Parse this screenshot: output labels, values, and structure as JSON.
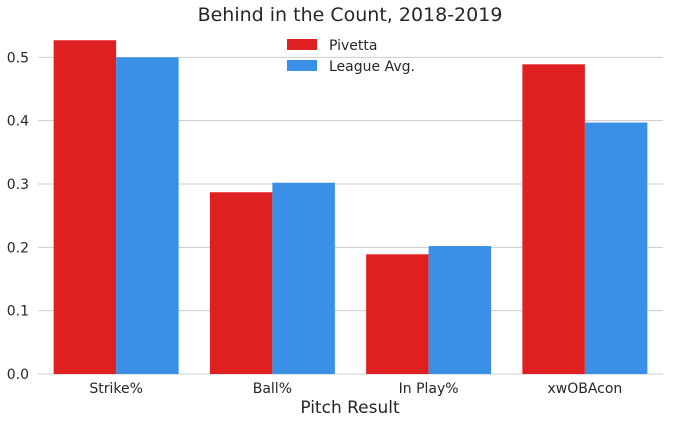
{
  "chart_data": {
    "type": "bar",
    "title": "Behind in the Count, 2018-2019",
    "xlabel": "Pitch Result",
    "ylabel": "",
    "categories": [
      "Strike%",
      "Ball%",
      "In Play%",
      "xwOBAcon"
    ],
    "series": [
      {
        "name": "Pivetta",
        "color": "#e02020",
        "values": [
          0.527,
          0.287,
          0.189,
          0.489
        ]
      },
      {
        "name": "League Avg.",
        "color": "#3a8fe6",
        "values": [
          0.5,
          0.302,
          0.202,
          0.397
        ]
      }
    ],
    "ylim": [
      0,
      0.54
    ],
    "yticks": [
      "0.0",
      "0.1",
      "0.2",
      "0.3",
      "0.4",
      "0.5"
    ],
    "grid": true,
    "legend_position": "top-center"
  }
}
